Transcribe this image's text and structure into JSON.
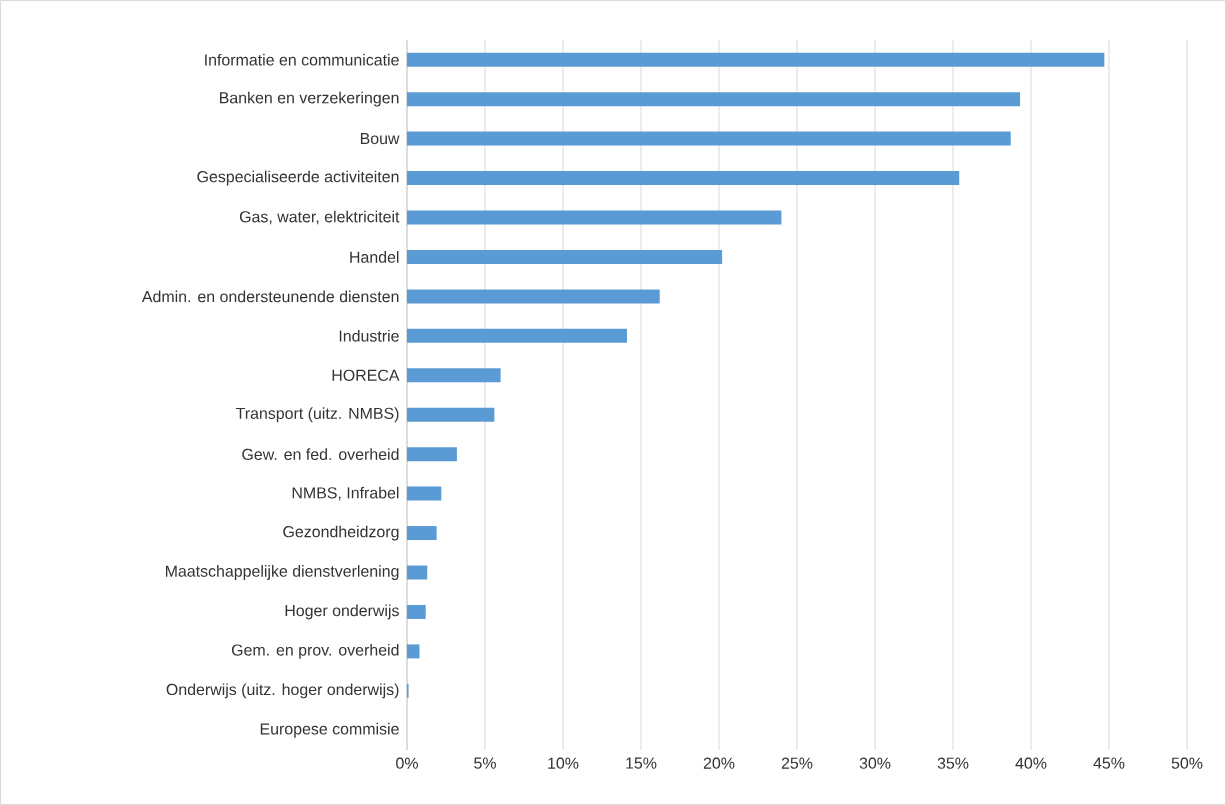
{
  "chart_data": {
    "type": "bar",
    "orientation": "horizontal",
    "categories": [
      "Informatie en communicatie",
      "Banken en verzekeringen",
      "Bouw",
      "Gespecialiseerde activiteiten",
      "Gas, water, elektriciteit",
      "Handel",
      "Admin. en ondersteunende diensten",
      "Industrie",
      "HORECA",
      "Transport (uitz. NMBS)",
      "Gew. en fed. overheid",
      "NMBS, Infrabel",
      "Gezondheidzorg",
      "Maatschappelijke dienstverlening",
      "Hoger onderwijs",
      "Gem. en prov. overheid",
      "Onderwijs (uitz. hoger onderwijs)",
      "Europese commisie"
    ],
    "values": [
      44.7,
      39.3,
      38.7,
      35.4,
      24.0,
      20.2,
      16.2,
      14.1,
      6.0,
      5.6,
      3.2,
      2.2,
      1.9,
      1.3,
      1.2,
      0.8,
      0.1,
      0
    ],
    "color": "#5b9bd5",
    "xlim": [
      0,
      50
    ],
    "xticks": [
      {
        "value": 0,
        "label": "0%"
      },
      {
        "value": 5,
        "label": "5%"
      },
      {
        "value": 10,
        "label": "10%"
      },
      {
        "value": 15,
        "label": "15%"
      },
      {
        "value": 20,
        "label": "20%"
      },
      {
        "value": 25,
        "label": "25%"
      },
      {
        "value": 30,
        "label": "30%"
      },
      {
        "value": 35,
        "label": "35%"
      },
      {
        "value": 40,
        "label": "40%"
      },
      {
        "value": 45,
        "label": "45%"
      },
      {
        "value": 50,
        "label": "50%"
      }
    ],
    "grid": "x"
  }
}
